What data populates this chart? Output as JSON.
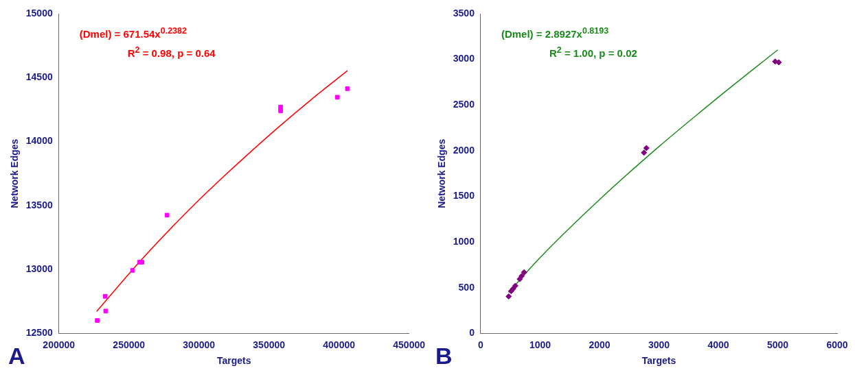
{
  "chart_data": [
    {
      "type": "scatter",
      "xlabel": "Targets",
      "ylabel": "Network Edges",
      "xlim": [
        200000,
        450000
      ],
      "xticks": [
        200000,
        250000,
        300000,
        350000,
        400000,
        450000
      ],
      "ylim": [
        12500,
        15000
      ],
      "yticks": [
        12500,
        13000,
        13500,
        14000,
        14500,
        15000
      ],
      "grid": false,
      "legend": false,
      "annotations": [
        "(Dmel) = 671.54x$^{0.2382}$",
        "R$^{2}$ = 0.98, p = 0.64",
        "A"
      ],
      "series": [
        {
          "marker": "square",
          "color": "#ff00ff",
          "x": [
            227400,
            233450,
            233100,
            252600,
            257600,
            259300,
            277200,
            358300,
            358300,
            398800,
            406000
          ],
          "values": [
            12601,
            12675,
            12790,
            12993,
            13057,
            13057,
            13425,
            14270,
            14240,
            14347,
            14414
          ]
        },
        {
          "type": "line",
          "marker": "none",
          "color": "#ff0000",
          "x": [
            227000,
            260000,
            300000,
            350000,
            380000,
            406000
          ],
          "values": [
            12672,
            13089,
            13543,
            14048,
            14327,
            14554
          ]
        }
      ]
    },
    {
      "type": "scatter",
      "xlabel": "Targets",
      "ylabel": "Network Edges",
      "xlim": [
        0,
        6000
      ],
      "xticks": [
        0,
        1000,
        2000,
        3000,
        4000,
        5000,
        6000
      ],
      "ylim": [
        0,
        3500
      ],
      "yticks": [
        0,
        500,
        1000,
        1500,
        2000,
        2500,
        3000,
        3500
      ],
      "grid": false,
      "legend": false,
      "annotations": [
        "(Dmel) = 2.8927x$^{0.8193}$",
        "R$^{2}$ = 1.00, p = 0.02",
        "B"
      ],
      "series": [
        {
          "marker": "diamond",
          "color": "#800080",
          "x": [
            472,
            513,
            546,
            583,
            657,
            689,
            730,
            2749,
            2790,
            4957,
            5018
          ],
          "values": [
            405,
            463,
            489,
            521,
            595,
            627,
            669,
            1979,
            2029,
            2976,
            2968
          ]
        },
        {
          "type": "line",
          "marker": "none",
          "color": "#1a8a1a",
          "x": [
            470,
            1000,
            2000,
            3000,
            4000,
            5000
          ],
          "values": [
            447,
            830,
            1465,
            2045,
            2585,
            3104
          ]
        }
      ]
    }
  ]
}
